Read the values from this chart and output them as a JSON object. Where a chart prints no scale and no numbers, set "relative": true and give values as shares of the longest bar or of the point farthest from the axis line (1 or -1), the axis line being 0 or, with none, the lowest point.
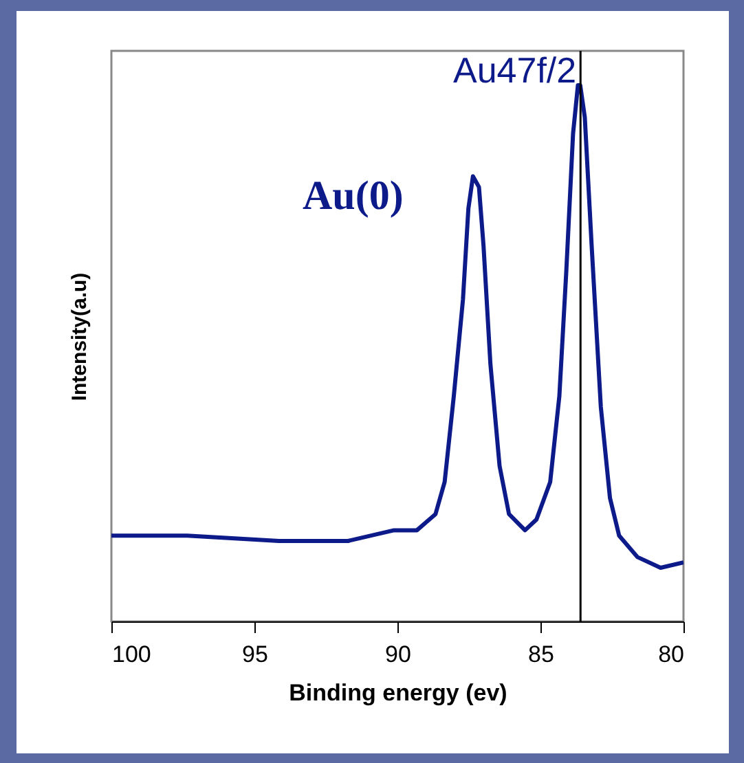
{
  "chart_data": {
    "type": "line",
    "relative": true,
    "xlabel": "Binding energy (ev)",
    "ylabel": "Intensity(a.u)",
    "x": [
      100,
      97.35,
      94.14,
      91.73,
      90.12,
      89.32,
      88.67,
      88.35,
      88.03,
      87.71,
      87.52,
      87.36,
      87.15,
      86.99,
      86.75,
      86.43,
      86.1,
      85.54,
      85.14,
      84.66,
      84.34,
      84.1,
      83.86,
      83.69,
      83.61,
      83.45,
      83.21,
      82.89,
      82.57,
      82.25,
      81.61,
      80.8,
      80
    ],
    "series": [
      {
        "color": "#0d1a8a",
        "values": [
          0.16,
          0.16,
          0.15,
          0.15,
          0.17,
          0.17,
          0.2,
          0.26,
          0.42,
          0.6,
          0.77,
          0.83,
          0.81,
          0.7,
          0.48,
          0.29,
          0.2,
          0.17,
          0.19,
          0.26,
          0.42,
          0.65,
          0.91,
          1.0,
          1.0,
          0.94,
          0.7,
          0.4,
          0.23,
          0.16,
          0.12,
          0.1,
          0.11
        ]
      }
    ],
    "xlim": [
      100,
      80
    ],
    "xticks": [
      100,
      95,
      90,
      85,
      80
    ],
    "grid": false,
    "ref_lines": [
      {
        "axis": "x",
        "value": 83.6,
        "label": "Au47f/2",
        "color": "#000000"
      }
    ],
    "annotations": [
      "Au(0)"
    ]
  }
}
